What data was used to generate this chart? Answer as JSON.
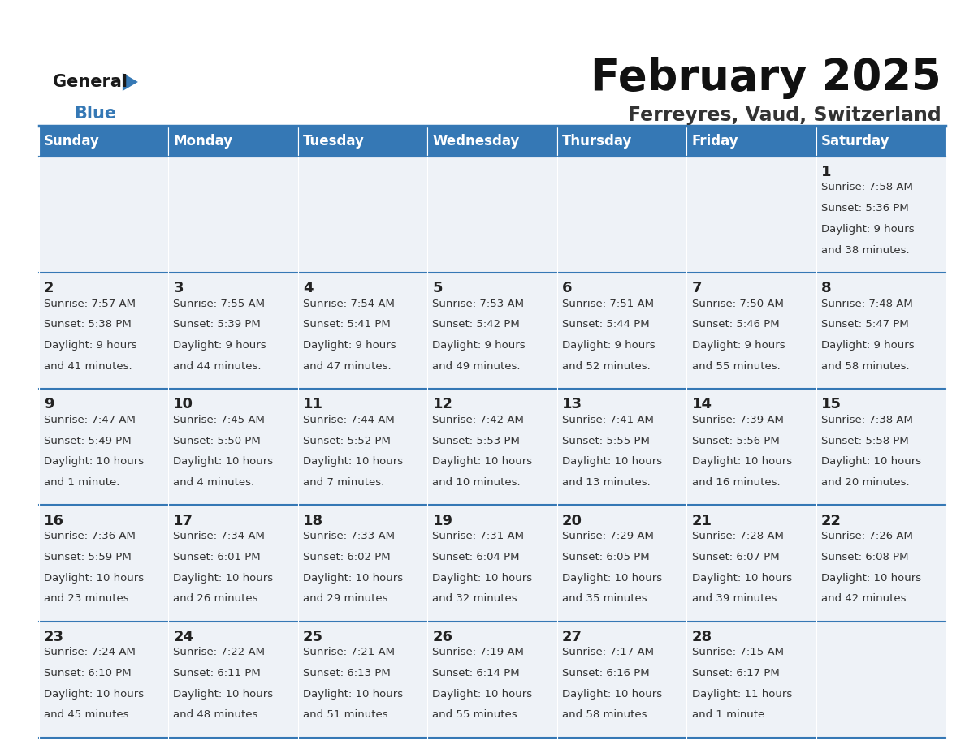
{
  "title": "February 2025",
  "subtitle": "Ferreyres, Vaud, Switzerland",
  "header_color": "#3578b5",
  "header_text_color": "#ffffff",
  "cell_bg_color": "#eef2f7",
  "border_color": "#3578b5",
  "days_of_week": [
    "Sunday",
    "Monday",
    "Tuesday",
    "Wednesday",
    "Thursday",
    "Friday",
    "Saturday"
  ],
  "weeks": [
    [
      {
        "day": "",
        "info": ""
      },
      {
        "day": "",
        "info": ""
      },
      {
        "day": "",
        "info": ""
      },
      {
        "day": "",
        "info": ""
      },
      {
        "day": "",
        "info": ""
      },
      {
        "day": "",
        "info": ""
      },
      {
        "day": "1",
        "info": "Sunrise: 7:58 AM\nSunset: 5:36 PM\nDaylight: 9 hours\nand 38 minutes."
      }
    ],
    [
      {
        "day": "2",
        "info": "Sunrise: 7:57 AM\nSunset: 5:38 PM\nDaylight: 9 hours\nand 41 minutes."
      },
      {
        "day": "3",
        "info": "Sunrise: 7:55 AM\nSunset: 5:39 PM\nDaylight: 9 hours\nand 44 minutes."
      },
      {
        "day": "4",
        "info": "Sunrise: 7:54 AM\nSunset: 5:41 PM\nDaylight: 9 hours\nand 47 minutes."
      },
      {
        "day": "5",
        "info": "Sunrise: 7:53 AM\nSunset: 5:42 PM\nDaylight: 9 hours\nand 49 minutes."
      },
      {
        "day": "6",
        "info": "Sunrise: 7:51 AM\nSunset: 5:44 PM\nDaylight: 9 hours\nand 52 minutes."
      },
      {
        "day": "7",
        "info": "Sunrise: 7:50 AM\nSunset: 5:46 PM\nDaylight: 9 hours\nand 55 minutes."
      },
      {
        "day": "8",
        "info": "Sunrise: 7:48 AM\nSunset: 5:47 PM\nDaylight: 9 hours\nand 58 minutes."
      }
    ],
    [
      {
        "day": "9",
        "info": "Sunrise: 7:47 AM\nSunset: 5:49 PM\nDaylight: 10 hours\nand 1 minute."
      },
      {
        "day": "10",
        "info": "Sunrise: 7:45 AM\nSunset: 5:50 PM\nDaylight: 10 hours\nand 4 minutes."
      },
      {
        "day": "11",
        "info": "Sunrise: 7:44 AM\nSunset: 5:52 PM\nDaylight: 10 hours\nand 7 minutes."
      },
      {
        "day": "12",
        "info": "Sunrise: 7:42 AM\nSunset: 5:53 PM\nDaylight: 10 hours\nand 10 minutes."
      },
      {
        "day": "13",
        "info": "Sunrise: 7:41 AM\nSunset: 5:55 PM\nDaylight: 10 hours\nand 13 minutes."
      },
      {
        "day": "14",
        "info": "Sunrise: 7:39 AM\nSunset: 5:56 PM\nDaylight: 10 hours\nand 16 minutes."
      },
      {
        "day": "15",
        "info": "Sunrise: 7:38 AM\nSunset: 5:58 PM\nDaylight: 10 hours\nand 20 minutes."
      }
    ],
    [
      {
        "day": "16",
        "info": "Sunrise: 7:36 AM\nSunset: 5:59 PM\nDaylight: 10 hours\nand 23 minutes."
      },
      {
        "day": "17",
        "info": "Sunrise: 7:34 AM\nSunset: 6:01 PM\nDaylight: 10 hours\nand 26 minutes."
      },
      {
        "day": "18",
        "info": "Sunrise: 7:33 AM\nSunset: 6:02 PM\nDaylight: 10 hours\nand 29 minutes."
      },
      {
        "day": "19",
        "info": "Sunrise: 7:31 AM\nSunset: 6:04 PM\nDaylight: 10 hours\nand 32 minutes."
      },
      {
        "day": "20",
        "info": "Sunrise: 7:29 AM\nSunset: 6:05 PM\nDaylight: 10 hours\nand 35 minutes."
      },
      {
        "day": "21",
        "info": "Sunrise: 7:28 AM\nSunset: 6:07 PM\nDaylight: 10 hours\nand 39 minutes."
      },
      {
        "day": "22",
        "info": "Sunrise: 7:26 AM\nSunset: 6:08 PM\nDaylight: 10 hours\nand 42 minutes."
      }
    ],
    [
      {
        "day": "23",
        "info": "Sunrise: 7:24 AM\nSunset: 6:10 PM\nDaylight: 10 hours\nand 45 minutes."
      },
      {
        "day": "24",
        "info": "Sunrise: 7:22 AM\nSunset: 6:11 PM\nDaylight: 10 hours\nand 48 minutes."
      },
      {
        "day": "25",
        "info": "Sunrise: 7:21 AM\nSunset: 6:13 PM\nDaylight: 10 hours\nand 51 minutes."
      },
      {
        "day": "26",
        "info": "Sunrise: 7:19 AM\nSunset: 6:14 PM\nDaylight: 10 hours\nand 55 minutes."
      },
      {
        "day": "27",
        "info": "Sunrise: 7:17 AM\nSunset: 6:16 PM\nDaylight: 10 hours\nand 58 minutes."
      },
      {
        "day": "28",
        "info": "Sunrise: 7:15 AM\nSunset: 6:17 PM\nDaylight: 11 hours\nand 1 minute."
      },
      {
        "day": "",
        "info": ""
      }
    ]
  ],
  "logo_text_general": "General",
  "logo_text_blue": "Blue",
  "logo_color_general": "#1a1a1a",
  "logo_color_blue": "#3578b5",
  "logo_triangle_color": "#3578b5",
  "title_fontsize": 38,
  "subtitle_fontsize": 17,
  "header_fontsize": 12,
  "day_num_fontsize": 13,
  "info_fontsize": 9.5
}
